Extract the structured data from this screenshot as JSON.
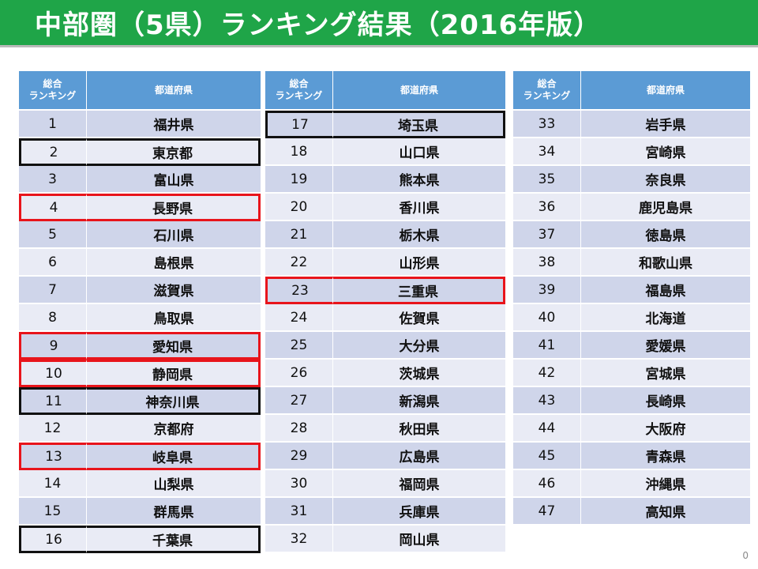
{
  "title": "中部圏（5県）ランキング結果（2016年版）",
  "headers": {
    "rank_line1": "総合",
    "rank_line2": "ランキング",
    "pref": "都道府県"
  },
  "colors": {
    "title_bar": "#1fa548",
    "header": "#5b9bd5",
    "row_dark": "#cfd5ea",
    "row_light": "#e9ebf5",
    "highlight_red": "#e8141b",
    "highlight_black": "#111111"
  },
  "tables": [
    {
      "rows": [
        {
          "rank": "1",
          "pref": "福井県",
          "highlight": ""
        },
        {
          "rank": "2",
          "pref": "東京都",
          "highlight": "black"
        },
        {
          "rank": "3",
          "pref": "富山県",
          "highlight": ""
        },
        {
          "rank": "4",
          "pref": "長野県",
          "highlight": "red"
        },
        {
          "rank": "5",
          "pref": "石川県",
          "highlight": ""
        },
        {
          "rank": "6",
          "pref": "島根県",
          "highlight": ""
        },
        {
          "rank": "7",
          "pref": "滋賀県",
          "highlight": ""
        },
        {
          "rank": "8",
          "pref": "鳥取県",
          "highlight": ""
        },
        {
          "rank": "9",
          "pref": "愛知県",
          "highlight": "red"
        },
        {
          "rank": "10",
          "pref": "静岡県",
          "highlight": "red"
        },
        {
          "rank": "11",
          "pref": "神奈川県",
          "highlight": "black"
        },
        {
          "rank": "12",
          "pref": "京都府",
          "highlight": ""
        },
        {
          "rank": "13",
          "pref": "岐阜県",
          "highlight": "red"
        },
        {
          "rank": "14",
          "pref": "山梨県",
          "highlight": ""
        },
        {
          "rank": "15",
          "pref": "群馬県",
          "highlight": ""
        },
        {
          "rank": "16",
          "pref": "千葉県",
          "highlight": "black"
        }
      ]
    },
    {
      "rows": [
        {
          "rank": "17",
          "pref": "埼玉県",
          "highlight": "black"
        },
        {
          "rank": "18",
          "pref": "山口県",
          "highlight": ""
        },
        {
          "rank": "19",
          "pref": "熊本県",
          "highlight": ""
        },
        {
          "rank": "20",
          "pref": "香川県",
          "highlight": ""
        },
        {
          "rank": "21",
          "pref": "栃木県",
          "highlight": ""
        },
        {
          "rank": "22",
          "pref": "山形県",
          "highlight": ""
        },
        {
          "rank": "23",
          "pref": "三重県",
          "highlight": "red"
        },
        {
          "rank": "24",
          "pref": "佐賀県",
          "highlight": ""
        },
        {
          "rank": "25",
          "pref": "大分県",
          "highlight": ""
        },
        {
          "rank": "26",
          "pref": "茨城県",
          "highlight": ""
        },
        {
          "rank": "27",
          "pref": "新潟県",
          "highlight": ""
        },
        {
          "rank": "28",
          "pref": "秋田県",
          "highlight": ""
        },
        {
          "rank": "29",
          "pref": "広島県",
          "highlight": ""
        },
        {
          "rank": "30",
          "pref": "福岡県",
          "highlight": ""
        },
        {
          "rank": "31",
          "pref": "兵庫県",
          "highlight": ""
        },
        {
          "rank": "32",
          "pref": "岡山県",
          "highlight": ""
        }
      ]
    },
    {
      "rows": [
        {
          "rank": "33",
          "pref": "岩手県",
          "highlight": ""
        },
        {
          "rank": "34",
          "pref": "宮崎県",
          "highlight": ""
        },
        {
          "rank": "35",
          "pref": "奈良県",
          "highlight": ""
        },
        {
          "rank": "36",
          "pref": "鹿児島県",
          "highlight": ""
        },
        {
          "rank": "37",
          "pref": "徳島県",
          "highlight": ""
        },
        {
          "rank": "38",
          "pref": "和歌山県",
          "highlight": ""
        },
        {
          "rank": "39",
          "pref": "福島県",
          "highlight": ""
        },
        {
          "rank": "40",
          "pref": "北海道",
          "highlight": ""
        },
        {
          "rank": "41",
          "pref": "愛媛県",
          "highlight": ""
        },
        {
          "rank": "42",
          "pref": "宮城県",
          "highlight": ""
        },
        {
          "rank": "43",
          "pref": "長崎県",
          "highlight": ""
        },
        {
          "rank": "44",
          "pref": "大阪府",
          "highlight": ""
        },
        {
          "rank": "45",
          "pref": "青森県",
          "highlight": ""
        },
        {
          "rank": "46",
          "pref": "沖縄県",
          "highlight": ""
        },
        {
          "rank": "47",
          "pref": "高知県",
          "highlight": ""
        }
      ]
    }
  ],
  "page_number": "0"
}
